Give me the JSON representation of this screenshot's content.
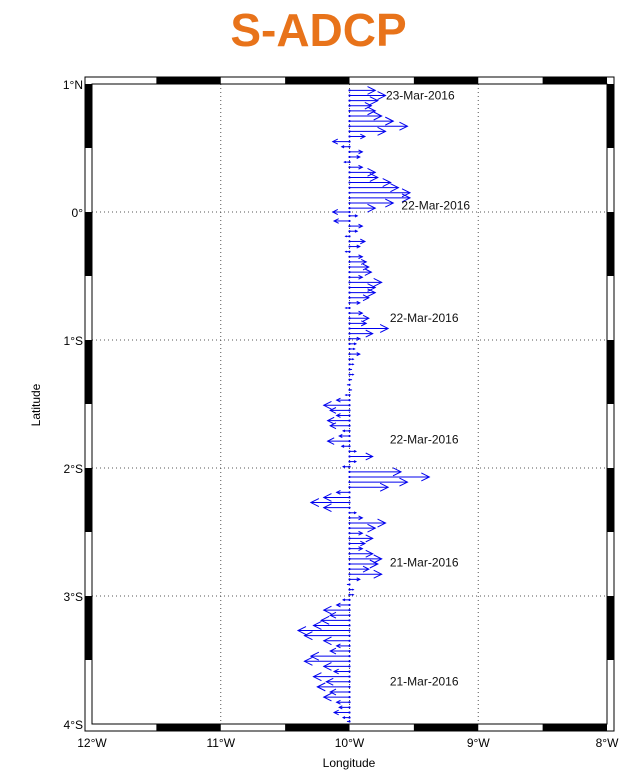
{
  "title": "S-ADCP",
  "colors": {
    "title": "#e8731a",
    "vector": "#0000ee",
    "frame": "#000000",
    "grid": "#555555"
  },
  "chart_data": {
    "type": "vector-field",
    "xlabel": "Longitude",
    "ylabel": "Latitude",
    "xlim": [
      -12,
      -8
    ],
    "ylim": [
      -4,
      1
    ],
    "grid": true,
    "xticks": [
      {
        "value": -12,
        "label": "12°W"
      },
      {
        "value": -11,
        "label": "11°W"
      },
      {
        "value": -10,
        "label": "10°W"
      },
      {
        "value": -9,
        "label": "9°W"
      },
      {
        "value": -8,
        "label": "8°W"
      }
    ],
    "yticks": [
      {
        "value": 1,
        "label": "1°N"
      },
      {
        "value": 0,
        "label": "0°"
      },
      {
        "value": -1,
        "label": "1°S"
      },
      {
        "value": -2,
        "label": "2°S"
      },
      {
        "value": -3,
        "label": "3°S"
      },
      {
        "value": -4,
        "label": "4°S"
      }
    ],
    "annotations": [
      {
        "text": "23-Mar-2016",
        "lon": -9.45,
        "lat": 0.88
      },
      {
        "text": "22-Mar-2016",
        "lon": -9.33,
        "lat": 0.02
      },
      {
        "text": "22-Mar-2016",
        "lon": -9.42,
        "lat": -0.86
      },
      {
        "text": "22-Mar-2016",
        "lon": -9.42,
        "lat": -1.81
      },
      {
        "text": "21-Mar-2016",
        "lon": -9.42,
        "lat": -2.77
      },
      {
        "text": "21-Mar-2016",
        "lon": -9.42,
        "lat": -3.7
      }
    ],
    "track_lon": -10.0,
    "vectors_lat_dlon": [
      [
        0.95,
        0.2
      ],
      [
        0.91,
        0.28
      ],
      [
        0.87,
        0.22
      ],
      [
        0.83,
        0.17
      ],
      [
        0.79,
        0.2
      ],
      [
        0.75,
        0.25
      ],
      [
        0.71,
        0.34
      ],
      [
        0.67,
        0.45
      ],
      [
        0.63,
        0.28
      ],
      [
        0.59,
        0.12
      ],
      [
        0.55,
        -0.13
      ],
      [
        0.51,
        -0.06
      ],
      [
        0.47,
        0.1
      ],
      [
        0.43,
        0.08
      ],
      [
        0.39,
        -0.04
      ],
      [
        0.35,
        0.1
      ],
      [
        0.31,
        0.2
      ],
      [
        0.27,
        0.22
      ],
      [
        0.23,
        0.32
      ],
      [
        0.19,
        0.38
      ],
      [
        0.15,
        0.47
      ],
      [
        0.11,
        0.47
      ],
      [
        0.07,
        0.34
      ],
      [
        0.03,
        0.2
      ],
      [
        0.0,
        -0.13
      ],
      [
        -0.03,
        0.06
      ],
      [
        -0.07,
        -0.12
      ],
      [
        -0.11,
        0.1
      ],
      [
        -0.15,
        0.06
      ],
      [
        -0.19,
        -0.03
      ],
      [
        -0.23,
        0.12
      ],
      [
        -0.27,
        0.08
      ],
      [
        -0.31,
        -0.03
      ],
      [
        -0.35,
        0.1
      ],
      [
        -0.39,
        0.13
      ],
      [
        -0.43,
        0.15
      ],
      [
        -0.47,
        0.17
      ],
      [
        -0.51,
        0.1
      ],
      [
        -0.55,
        0.25
      ],
      [
        -0.59,
        0.2
      ],
      [
        -0.63,
        0.2
      ],
      [
        -0.67,
        0.15
      ],
      [
        -0.71,
        0.08
      ],
      [
        -0.75,
        -0.03
      ],
      [
        -0.79,
        0.1
      ],
      [
        -0.83,
        0.15
      ],
      [
        -0.87,
        0.13
      ],
      [
        -0.91,
        0.3
      ],
      [
        -0.95,
        0.18
      ],
      [
        -0.99,
        0.08
      ],
      [
        -1.03,
        0.05
      ],
      [
        -1.07,
        0.04
      ],
      [
        -1.11,
        0.08
      ],
      [
        -1.15,
        0.03
      ],
      [
        -1.19,
        0.03
      ],
      [
        -1.23,
        0.02
      ],
      [
        -1.27,
        0.03
      ],
      [
        -1.31,
        0.02
      ],
      [
        -1.35,
        -0.02
      ],
      [
        -1.39,
        0.02
      ],
      [
        -1.43,
        -0.03
      ],
      [
        -1.47,
        -0.1
      ],
      [
        -1.51,
        -0.2
      ],
      [
        -1.55,
        -0.15
      ],
      [
        -1.59,
        -0.1
      ],
      [
        -1.63,
        -0.17
      ],
      [
        -1.67,
        -0.15
      ],
      [
        -1.71,
        -0.05
      ],
      [
        -1.75,
        -0.08
      ],
      [
        -1.79,
        -0.17
      ],
      [
        -1.83,
        -0.06
      ],
      [
        -1.87,
        0.05
      ],
      [
        -1.91,
        0.18
      ],
      [
        -1.95,
        0.05
      ],
      [
        -1.99,
        -0.05
      ],
      [
        -2.03,
        0.4
      ],
      [
        -2.07,
        0.62
      ],
      [
        -2.11,
        0.45
      ],
      [
        -2.15,
        0.3
      ],
      [
        -2.19,
        -0.1
      ],
      [
        -2.23,
        -0.2
      ],
      [
        -2.27,
        -0.3
      ],
      [
        -2.31,
        -0.2
      ],
      [
        -2.35,
        0.05
      ],
      [
        -2.39,
        0.1
      ],
      [
        -2.43,
        0.28
      ],
      [
        -2.47,
        0.2
      ],
      [
        -2.51,
        0.1
      ],
      [
        -2.55,
        0.18
      ],
      [
        -2.59,
        0.12
      ],
      [
        -2.63,
        0.1
      ],
      [
        -2.67,
        0.18
      ],
      [
        -2.71,
        0.25
      ],
      [
        -2.75,
        0.22
      ],
      [
        -2.79,
        0.15
      ],
      [
        -2.83,
        0.25
      ],
      [
        -2.87,
        0.08
      ],
      [
        -2.91,
        -0.02
      ],
      [
        -2.95,
        0.03
      ],
      [
        -2.99,
        0.03
      ],
      [
        -3.03,
        -0.05
      ],
      [
        -3.07,
        -0.1
      ],
      [
        -3.11,
        -0.2
      ],
      [
        -3.15,
        -0.15
      ],
      [
        -3.19,
        -0.22
      ],
      [
        -3.23,
        -0.28
      ],
      [
        -3.27,
        -0.4
      ],
      [
        -3.31,
        -0.35
      ],
      [
        -3.35,
        -0.2
      ],
      [
        -3.39,
        -0.1
      ],
      [
        -3.43,
        -0.15
      ],
      [
        -3.47,
        -0.3
      ],
      [
        -3.51,
        -0.35
      ],
      [
        -3.55,
        -0.2
      ],
      [
        -3.59,
        -0.12
      ],
      [
        -3.63,
        -0.28
      ],
      [
        -3.67,
        -0.18
      ],
      [
        -3.71,
        -0.25
      ],
      [
        -3.75,
        -0.15
      ],
      [
        -3.79,
        -0.2
      ],
      [
        -3.83,
        -0.1
      ],
      [
        -3.87,
        -0.08
      ],
      [
        -3.91,
        -0.12
      ],
      [
        -3.95,
        -0.05
      ],
      [
        -3.98,
        -0.02
      ]
    ]
  }
}
